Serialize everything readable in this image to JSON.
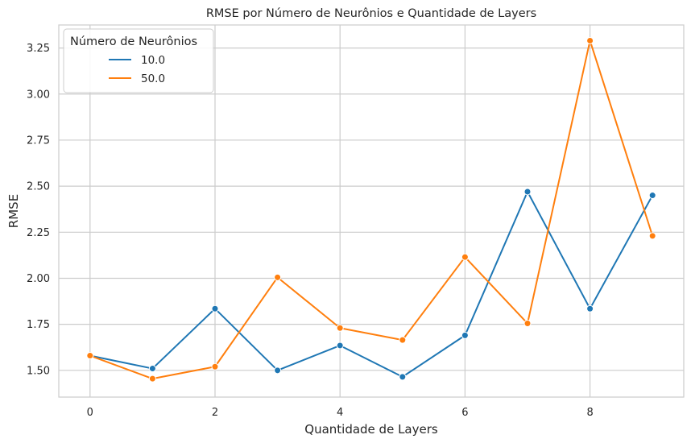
{
  "chart_data": {
    "type": "line",
    "title": "RMSE por Número de Neurônios e Quantidade de Layers",
    "xlabel": "Quantidade de Layers",
    "ylabel": "RMSE",
    "x": [
      0,
      1,
      2,
      3,
      4,
      5,
      6,
      7,
      8,
      9
    ],
    "xlim": [
      -0.5,
      9.5
    ],
    "ylim": [
      1.355,
      3.375
    ],
    "xticks": [
      0,
      2,
      4,
      6,
      8
    ],
    "xtick_labels": [
      "0",
      "2",
      "4",
      "6",
      "8"
    ],
    "yticks": [
      1.5,
      1.75,
      2.0,
      2.25,
      2.5,
      2.75,
      3.0,
      3.25
    ],
    "ytick_labels": [
      "1.50",
      "1.75",
      "2.00",
      "2.25",
      "2.50",
      "2.75",
      "3.00",
      "3.25"
    ],
    "grid": true,
    "legend_title": "Número de Neurônios",
    "legend_position": "top-left",
    "series": [
      {
        "name": "10.0",
        "color": "#1f77b4",
        "values": [
          1.58,
          1.51,
          1.835,
          1.5,
          1.635,
          1.465,
          1.69,
          2.47,
          1.835,
          2.45
        ]
      },
      {
        "name": "50.0",
        "color": "#ff7f0e",
        "values": [
          1.58,
          1.455,
          1.52,
          2.005,
          1.73,
          1.665,
          2.115,
          1.755,
          3.29,
          2.23
        ]
      }
    ]
  }
}
